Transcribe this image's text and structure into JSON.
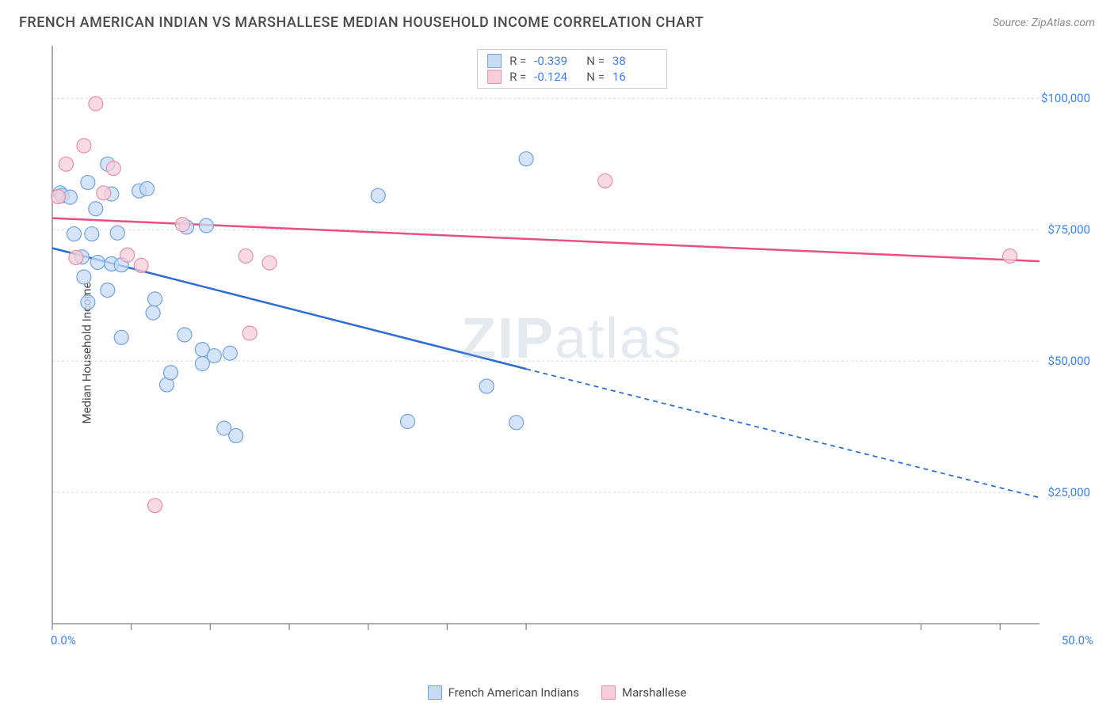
{
  "title": "FRENCH AMERICAN INDIAN VS MARSHALLESE MEDIAN HOUSEHOLD INCOME CORRELATION CHART",
  "source": "Source: ZipAtlas.com",
  "ylabel": "Median Household Income",
  "watermark_a": "ZIP",
  "watermark_b": "atlas",
  "chart": {
    "type": "scatter",
    "xlim": [
      0,
      50
    ],
    "ylim": [
      0,
      110000
    ],
    "xticks_pct": [
      0,
      4,
      8,
      12,
      16,
      20,
      24,
      44,
      48
    ],
    "x_start_label": "0.0%",
    "x_end_label": "50.0%",
    "yticks": [
      {
        "v": 25000,
        "label": "$25,000"
      },
      {
        "v": 50000,
        "label": "$50,000"
      },
      {
        "v": 75000,
        "label": "$75,000"
      },
      {
        "v": 100000,
        "label": "$100,000"
      }
    ],
    "grid_color": "#d8d8d8",
    "axis_color": "#808080",
    "background_color": "#ffffff",
    "marker_radius": 9,
    "marker_stroke_width": 1.2,
    "trend_line_width": 2.5,
    "series": [
      {
        "name": "French American Indians",
        "fill": "#c7dbf5",
        "stroke": "#6fa3e0",
        "line_color": "#2b6cd4",
        "trend_solid": {
          "x1": 0,
          "y1": 71500,
          "x2": 24,
          "y2": 48500
        },
        "trend_dash": {
          "x1": 24,
          "y1": 48500,
          "x2": 50,
          "y2": 24000
        },
        "stats": {
          "R": "-0.339",
          "N": "38"
        },
        "points": [
          {
            "x": 0.4,
            "y": 82000
          },
          {
            "x": 0.5,
            "y": 81500
          },
          {
            "x": 0.9,
            "y": 81200
          },
          {
            "x": 1.8,
            "y": 84000
          },
          {
            "x": 2.8,
            "y": 87500
          },
          {
            "x": 4.4,
            "y": 82400
          },
          {
            "x": 2.2,
            "y": 79000
          },
          {
            "x": 1.1,
            "y": 74200
          },
          {
            "x": 2.0,
            "y": 74200
          },
          {
            "x": 3.3,
            "y": 74400
          },
          {
            "x": 6.8,
            "y": 75500
          },
          {
            "x": 7.8,
            "y": 75800
          },
          {
            "x": 1.5,
            "y": 69800
          },
          {
            "x": 2.3,
            "y": 68800
          },
          {
            "x": 3.0,
            "y": 68500
          },
          {
            "x": 3.5,
            "y": 68300
          },
          {
            "x": 1.6,
            "y": 66000
          },
          {
            "x": 2.8,
            "y": 63500
          },
          {
            "x": 1.8,
            "y": 61200
          },
          {
            "x": 5.1,
            "y": 59200
          },
          {
            "x": 5.2,
            "y": 61800
          },
          {
            "x": 3.5,
            "y": 54500
          },
          {
            "x": 6.7,
            "y": 55000
          },
          {
            "x": 7.6,
            "y": 52200
          },
          {
            "x": 8.2,
            "y": 51000
          },
          {
            "x": 9.0,
            "y": 51500
          },
          {
            "x": 7.6,
            "y": 49500
          },
          {
            "x": 5.8,
            "y": 45500
          },
          {
            "x": 6.0,
            "y": 47800
          },
          {
            "x": 8.7,
            "y": 37200
          },
          {
            "x": 9.3,
            "y": 35800
          },
          {
            "x": 18.0,
            "y": 38500
          },
          {
            "x": 23.5,
            "y": 38300
          },
          {
            "x": 22.0,
            "y": 45200
          },
          {
            "x": 16.5,
            "y": 81500
          },
          {
            "x": 24.0,
            "y": 88500
          },
          {
            "x": 4.8,
            "y": 82800
          },
          {
            "x": 3.0,
            "y": 81800
          }
        ]
      },
      {
        "name": "Marshallese",
        "fill": "#f6cdd9",
        "stroke": "#e78fa9",
        "line_color": "#e94f80",
        "trend_solid": {
          "x1": 0,
          "y1": 77200,
          "x2": 50,
          "y2": 69000
        },
        "trend_dash": null,
        "stats": {
          "R": "-0.124",
          "N": "16"
        },
        "points": [
          {
            "x": 2.2,
            "y": 99000
          },
          {
            "x": 0.7,
            "y": 87500
          },
          {
            "x": 1.6,
            "y": 91000
          },
          {
            "x": 3.1,
            "y": 86700
          },
          {
            "x": 2.6,
            "y": 82000
          },
          {
            "x": 0.3,
            "y": 81300
          },
          {
            "x": 6.6,
            "y": 76000
          },
          {
            "x": 1.2,
            "y": 69700
          },
          {
            "x": 3.8,
            "y": 70200
          },
          {
            "x": 4.5,
            "y": 68200
          },
          {
            "x": 9.8,
            "y": 70000
          },
          {
            "x": 11.0,
            "y": 68700
          },
          {
            "x": 10.0,
            "y": 55300
          },
          {
            "x": 5.2,
            "y": 22500
          },
          {
            "x": 28.0,
            "y": 84300
          },
          {
            "x": 48.5,
            "y": 70000
          }
        ]
      }
    ],
    "legend_labels": {
      "series1": "French American Indians",
      "series2": "Marshallese"
    },
    "stats_labels": {
      "R": "R =",
      "N": "N ="
    }
  }
}
